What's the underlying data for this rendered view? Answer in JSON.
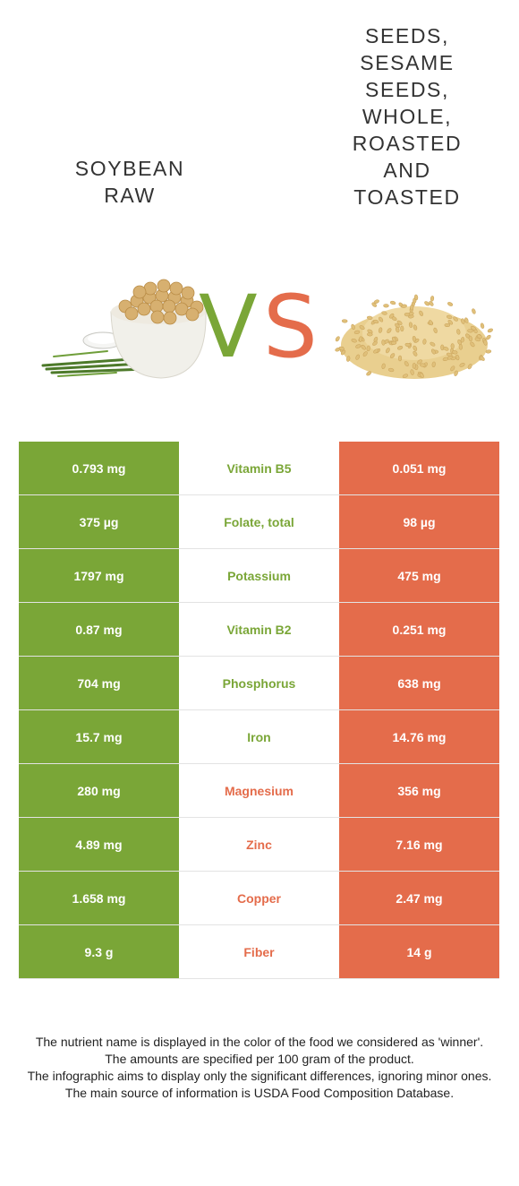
{
  "left_food": {
    "title": "SOYBEAN\nRAW",
    "color": "#7aa637",
    "image_icon": "soybean-bowl-icon"
  },
  "right_food": {
    "title": "SEEDS,\nSESAME\nSEEDS,\nWHOLE,\nROASTED\nAND\nTOASTED",
    "color": "#e46c4b",
    "image_icon": "sesame-pile-icon"
  },
  "vs": {
    "v": "V",
    "s": "S"
  },
  "nutrients": [
    {
      "left": "0.793 mg",
      "name": "Vitamin B5",
      "right": "0.051 mg",
      "winner": "left"
    },
    {
      "left": "375 µg",
      "name": "Folate, total",
      "right": "98 µg",
      "winner": "left"
    },
    {
      "left": "1797 mg",
      "name": "Potassium",
      "right": "475 mg",
      "winner": "left"
    },
    {
      "left": "0.87 mg",
      "name": "Vitamin B2",
      "right": "0.251 mg",
      "winner": "left"
    },
    {
      "left": "704 mg",
      "name": "Phosphorus",
      "right": "638 mg",
      "winner": "left"
    },
    {
      "left": "15.7 mg",
      "name": "Iron",
      "right": "14.76 mg",
      "winner": "left"
    },
    {
      "left": "280 mg",
      "name": "Magnesium",
      "right": "356 mg",
      "winner": "right"
    },
    {
      "left": "4.89 mg",
      "name": "Zinc",
      "right": "7.16 mg",
      "winner": "right"
    },
    {
      "left": "1.658 mg",
      "name": "Copper",
      "right": "2.47 mg",
      "winner": "right"
    },
    {
      "left": "9.3 g",
      "name": "Fiber",
      "right": "14 g",
      "winner": "right"
    }
  ],
  "notes": [
    "The nutrient name is displayed in the color of the food we considered as 'winner'.",
    "The amounts are specified per 100 gram of the product.",
    "The infographic aims to display only the significant differences, ignoring minor ones.",
    "The main source of information is USDA Food Composition Database."
  ]
}
